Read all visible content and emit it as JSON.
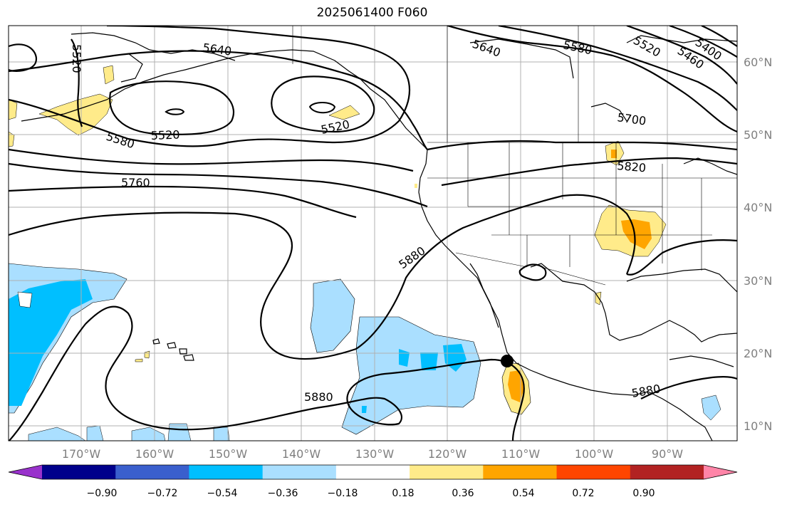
{
  "title": "2025061400 F060",
  "map": {
    "lon_ticks": [
      "170°W",
      "160°W",
      "150°W",
      "140°W",
      "130°W",
      "120°W",
      "110°W",
      "100°W",
      "90°W"
    ],
    "lat_ticks": [
      "60°N",
      "50°N",
      "40°N",
      "30°N",
      "20°N",
      "10°N"
    ],
    "contour_labels": [
      "5520",
      "5640",
      "5640",
      "5580",
      "5520",
      "5400",
      "5460",
      "5520",
      "5580",
      "5520",
      "5700",
      "5760",
      "5820",
      "5880",
      "5880",
      "5880"
    ],
    "colors": {
      "land": "#000000",
      "contour": "#000000",
      "grid": "#b0b0b0",
      "storm_marker": "#000000"
    }
  },
  "colorbar": {
    "tick_labels": [
      "−0.90",
      "−0.72",
      "−0.54",
      "−0.36",
      "−0.18",
      "0.18",
      "0.36",
      "0.54",
      "0.72",
      "0.90"
    ],
    "colors": [
      "#9932cc",
      "#00008b",
      "#3a5fcd",
      "#00bfff",
      "#aadfff",
      "#ffffff",
      "#ffeb8a",
      "#ffa500",
      "#ff4500",
      "#b22222",
      "#ff85a8"
    ]
  }
}
